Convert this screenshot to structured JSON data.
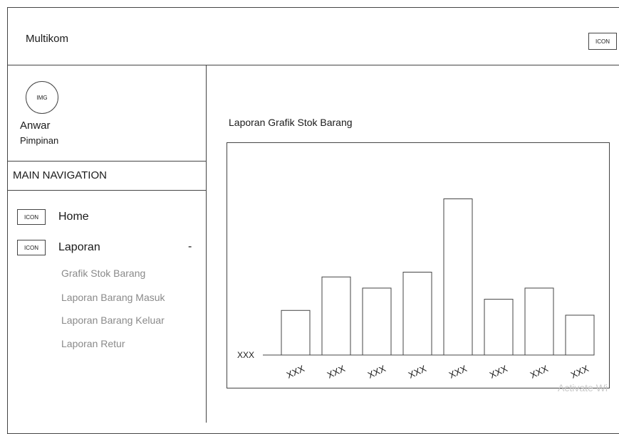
{
  "header": {
    "app_title": "Multikom",
    "icon_label": "ICON"
  },
  "sidebar": {
    "avatar_label": "IMG",
    "user_name": "Anwar",
    "user_role": "Pimpinan",
    "nav_header": "MAIN NAVIGATION",
    "items": [
      {
        "icon": "ICON",
        "label": "Home"
      },
      {
        "icon": "ICON",
        "label": "Laporan",
        "toggle": "-"
      }
    ],
    "sub_items": [
      "Grafik Stok Barang",
      "Laporan Barang Masuk",
      "Laporan Barang Keluar",
      "Laporan Retur"
    ]
  },
  "main": {
    "title": "Laporan Grafik Stok Barang"
  },
  "chart_data": {
    "type": "bar",
    "title": "",
    "xlabel": "",
    "ylabel": "",
    "y_tick_label": "XXX",
    "categories": [
      "XXX",
      "XXX",
      "XXX",
      "XXX",
      "XXX",
      "XXX",
      "XXX",
      "XXX"
    ],
    "values": [
      28,
      49,
      42,
      52,
      98,
      35,
      42,
      25
    ],
    "ylim": [
      0,
      100
    ],
    "grid": false,
    "legend": "none"
  },
  "watermark": "Activate Wi"
}
